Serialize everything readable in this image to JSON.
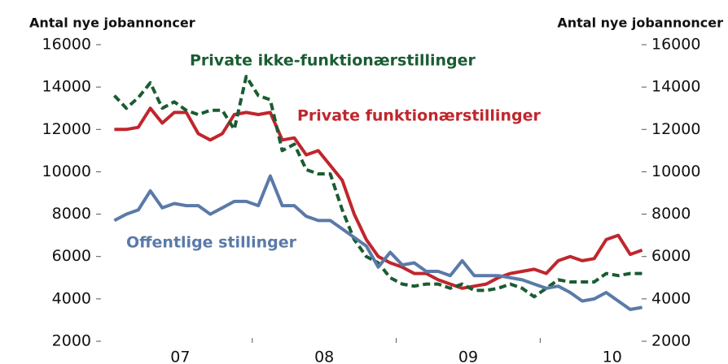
{
  "chart_data": {
    "type": "line",
    "y_label": "Antal nye jobannoncer",
    "y2_label": "Antal nye jobannoncer",
    "categories": [
      null,
      null,
      null,
      null,
      null,
      null,
      "07",
      null,
      null,
      null,
      null,
      null,
      null,
      null,
      null,
      null,
      null,
      null,
      "08",
      null,
      null,
      null,
      null,
      null,
      null,
      null,
      null,
      null,
      null,
      null,
      "09",
      null,
      null,
      null,
      null,
      null,
      null,
      null,
      null,
      null,
      null,
      null,
      "10",
      null,
      null
    ],
    "ylim": [
      2000,
      16000
    ],
    "yticks": [
      2000,
      4000,
      6000,
      8000,
      10000,
      12000,
      14000,
      16000
    ],
    "y2lim": [
      2000,
      16000
    ],
    "y2ticks": [
      2000,
      4000,
      6000,
      8000,
      10000,
      12000,
      14000,
      16000
    ],
    "series": [
      {
        "name": "Private funktionærstillinger",
        "color": "#c0262d",
        "dashed": false,
        "values": [
          12000,
          12000,
          12100,
          13000,
          12300,
          12800,
          12800,
          11800,
          11500,
          11800,
          12700,
          12800,
          12700,
          12800,
          11500,
          11600,
          10800,
          11000,
          10300,
          9600,
          8000,
          6800,
          6000,
          5700,
          5500,
          5200,
          5200,
          4900,
          4700,
          4500,
          4600,
          4700,
          5000,
          5200,
          5300,
          5400,
          5200,
          5800,
          6000,
          5800,
          5900,
          6800,
          7000,
          6100,
          6300
        ]
      },
      {
        "name": "Private ikke-funktionærstillinger",
        "color": "#1a5c32",
        "dashed": true,
        "values": [
          13600,
          13000,
          13500,
          14200,
          13000,
          13300,
          12900,
          12700,
          12900,
          12900,
          12000,
          14500,
          13600,
          13400,
          11000,
          11300,
          10100,
          9900,
          9900,
          8200,
          6800,
          6000,
          5700,
          5000,
          4700,
          4600,
          4700,
          4700,
          4500,
          4700,
          4400,
          4400,
          4500,
          4700,
          4500,
          4100,
          4500,
          4900,
          4800,
          4800,
          4800,
          5200,
          5100,
          5200,
          5200
        ]
      },
      {
        "name": "Offentlige stillinger",
        "color": "#5a7aa8",
        "dashed": false,
        "values": [
          7700,
          8000,
          8200,
          9100,
          8300,
          8500,
          8400,
          8400,
          8000,
          8300,
          8600,
          8600,
          8400,
          9800,
          8400,
          8400,
          7900,
          7700,
          7700,
          7300,
          6900,
          6500,
          5500,
          6200,
          5600,
          5700,
          5300,
          5300,
          5100,
          5800,
          5100,
          5100,
          5100,
          5000,
          4900,
          4700,
          4500,
          4600,
          4300,
          3900,
          4000,
          4300,
          3900,
          3500,
          3600
        ]
      }
    ]
  }
}
